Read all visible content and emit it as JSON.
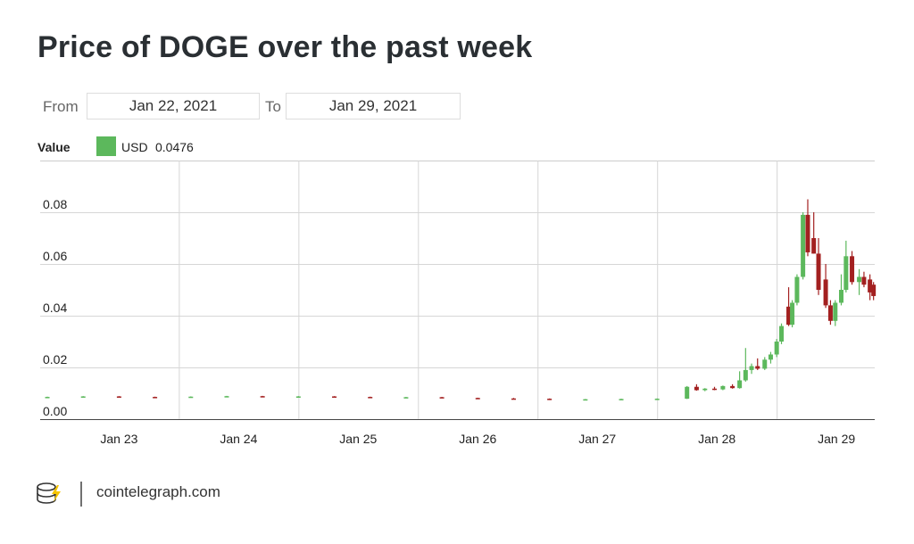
{
  "date_range": {
    "from_label": "From",
    "from": "Jan 22, 2021",
    "to_label": "To",
    "to": "Jan 29, 2021"
  },
  "footer": "cointelegraph.com",
  "chart_data": {
    "type": "candlestick",
    "title": "Price of DOGE over the past week",
    "legend_title": "Value",
    "series": [
      {
        "name": "USD",
        "color": "#5cb85c",
        "last_value": 0.0476
      }
    ],
    "up_color": "#5cb85c",
    "down_color": "#a32020",
    "grid": true,
    "xlim": [
      22.84,
      29.82
    ],
    "xticks": [
      {
        "value": 23.5,
        "label": "Jan 23"
      },
      {
        "value": 24.5,
        "label": "Jan 24"
      },
      {
        "value": 25.5,
        "label": "Jan 25"
      },
      {
        "value": 26.5,
        "label": "Jan 26"
      },
      {
        "value": 27.5,
        "label": "Jan 27"
      },
      {
        "value": 28.5,
        "label": "Jan 28"
      },
      {
        "value": 29.5,
        "label": "Jan 29"
      }
    ],
    "ylim": [
      0,
      0.1
    ],
    "yticks": [
      {
        "value": 0,
        "label": "0.00"
      },
      0.02,
      0.04,
      0.06,
      0.08
    ],
    "x": [
      22.9,
      23.2,
      23.5,
      23.8,
      24.1,
      24.4,
      24.7,
      25.0,
      25.3,
      25.6,
      25.9,
      26.2,
      26.5,
      26.8,
      27.1,
      27.4,
      27.7,
      28.0,
      28.25,
      28.33,
      28.4,
      28.48,
      28.55,
      28.63,
      28.69,
      28.74,
      28.79,
      28.84,
      28.9,
      28.95,
      29.0,
      29.04,
      29.1,
      29.13,
      29.17,
      29.22,
      29.26,
      29.31,
      29.35,
      29.41,
      29.45,
      29.49,
      29.54,
      29.58,
      29.63,
      29.69,
      29.73,
      29.78,
      29.81
    ],
    "open": [
      0.0085,
      0.0086,
      0.0088,
      0.0086,
      0.0085,
      0.0087,
      0.0089,
      0.0086,
      0.0088,
      0.0086,
      0.0084,
      0.0085,
      0.0082,
      0.008,
      0.0079,
      0.0076,
      0.0077,
      0.0078,
      0.0079,
      0.0125,
      0.0112,
      0.0118,
      0.0115,
      0.0128,
      0.012,
      0.015,
      0.019,
      0.0205,
      0.0195,
      0.023,
      0.025,
      0.03,
      0.0435,
      0.0365,
      0.045,
      0.055,
      0.079,
      0.07,
      0.064,
      0.054,
      0.044,
      0.038,
      0.045,
      0.05,
      0.063,
      0.053,
      0.055,
      0.054,
      0.052
    ],
    "high": [
      0.0087,
      0.0089,
      0.0089,
      0.0087,
      0.0088,
      0.009,
      0.009,
      0.0089,
      0.0089,
      0.0087,
      0.0086,
      0.0086,
      0.0083,
      0.0082,
      0.008,
      0.0078,
      0.0079,
      0.008,
      0.0128,
      0.0135,
      0.012,
      0.0125,
      0.013,
      0.0135,
      0.0185,
      0.0275,
      0.0215,
      0.0235,
      0.024,
      0.026,
      0.031,
      0.037,
      0.051,
      0.046,
      0.056,
      0.08,
      0.085,
      0.08,
      0.07,
      0.06,
      0.046,
      0.046,
      0.056,
      0.069,
      0.065,
      0.058,
      0.057,
      0.056,
      0.053
    ],
    "low": [
      0.0084,
      0.0085,
      0.0085,
      0.0084,
      0.0084,
      0.0086,
      0.0085,
      0.0085,
      0.0085,
      0.0083,
      0.0082,
      0.0081,
      0.0079,
      0.0078,
      0.0074,
      0.0075,
      0.0076,
      0.0077,
      0.0078,
      0.011,
      0.0108,
      0.0112,
      0.0112,
      0.0118,
      0.0118,
      0.0145,
      0.0175,
      0.019,
      0.019,
      0.0215,
      0.024,
      0.029,
      0.036,
      0.0355,
      0.044,
      0.054,
      0.063,
      0.064,
      0.048,
      0.043,
      0.0365,
      0.036,
      0.044,
      0.049,
      0.052,
      0.048,
      0.051,
      0.046,
      0.046
    ],
    "close": [
      0.0086,
      0.0088,
      0.0086,
      0.0085,
      0.0087,
      0.0089,
      0.0086,
      0.0088,
      0.0086,
      0.0084,
      0.0085,
      0.0082,
      0.008,
      0.0079,
      0.0076,
      0.0077,
      0.0078,
      0.0079,
      0.0125,
      0.0112,
      0.0118,
      0.0115,
      0.0128,
      0.012,
      0.015,
      0.019,
      0.0205,
      0.0195,
      0.023,
      0.025,
      0.03,
      0.036,
      0.0365,
      0.045,
      0.055,
      0.079,
      0.0645,
      0.064,
      0.05,
      0.044,
      0.038,
      0.045,
      0.05,
      0.063,
      0.053,
      0.055,
      0.052,
      0.049,
      0.0476
    ]
  }
}
